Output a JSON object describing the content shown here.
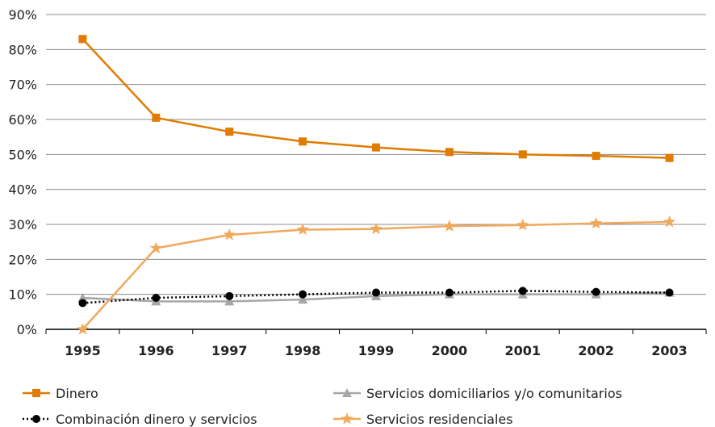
{
  "chart_data": {
    "type": "line",
    "title": "",
    "xlabel": "",
    "ylabel": "",
    "x": [
      "1995",
      "1996",
      "1997",
      "1998",
      "1999",
      "2000",
      "2001",
      "2002",
      "2003"
    ],
    "ylim": [
      0,
      90
    ],
    "yticks": [
      "0%",
      "10%",
      "20%",
      "30%",
      "40%",
      "50%",
      "60%",
      "70%",
      "80%",
      "90%"
    ],
    "grid": "horizontal",
    "legend_position": "bottom",
    "series": [
      {
        "name": "Dinero",
        "values": [
          83,
          60.5,
          56.5,
          53.7,
          52,
          50.7,
          50,
          49.6,
          49
        ],
        "color": "#E07B00",
        "marker": "square-icon",
        "line": "solid"
      },
      {
        "name": "Servicios domiciliarios y/o comunitarios",
        "values": [
          9,
          8,
          8,
          8.5,
          9.5,
          10,
          10,
          10,
          10.5
        ],
        "color": "#A6A6A6",
        "marker": "triangle-icon",
        "line": "solid"
      },
      {
        "name": "Combinación dinero y servicios",
        "values": [
          7.5,
          9,
          9.5,
          10,
          10.5,
          10.5,
          11,
          10.7,
          10.5
        ],
        "color": "#000000",
        "marker": "circle-icon",
        "line": "dotted"
      },
      {
        "name": "Servicios residenciales",
        "values": [
          0,
          23.2,
          27,
          28.5,
          28.7,
          29.5,
          29.8,
          30.3,
          30.7
        ],
        "color": "#F0A85A",
        "marker": "star-icon",
        "line": "solid"
      }
    ]
  }
}
